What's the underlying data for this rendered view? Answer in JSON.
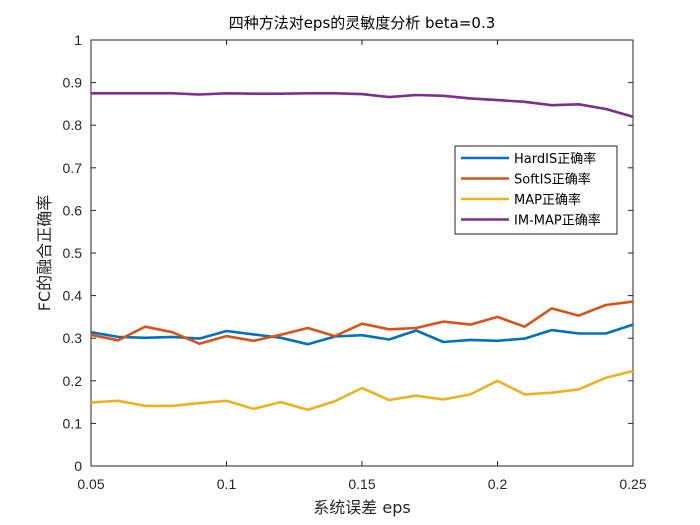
{
  "chart_data": {
    "type": "line",
    "title": "四种方法对eps的灵敏度分析 beta=0.3",
    "xlabel": "系统误差 eps",
    "ylabel": "FC的融合正确率",
    "xlim": [
      0.05,
      0.25
    ],
    "ylim": [
      0,
      1
    ],
    "xticks": [
      0.05,
      0.1,
      0.15,
      0.2,
      0.25
    ],
    "xtick_labels": [
      "0.05",
      "0.1",
      "0.15",
      "0.2",
      "0.25"
    ],
    "yticks": [
      0,
      0.1,
      0.2,
      0.3,
      0.4,
      0.5,
      0.6,
      0.7,
      0.8,
      0.9,
      1
    ],
    "ytick_labels": [
      "0",
      "0.1",
      "0.2",
      "0.3",
      "0.4",
      "0.5",
      "0.6",
      "0.7",
      "0.8",
      "0.9",
      "1"
    ],
    "grid": false,
    "legend_position": "right",
    "x": [
      0.05,
      0.06,
      0.07,
      0.08,
      0.09,
      0.1,
      0.11,
      0.12,
      0.13,
      0.14,
      0.15,
      0.16,
      0.17,
      0.18,
      0.19,
      0.2,
      0.21,
      0.22,
      0.23,
      0.24,
      0.25
    ],
    "series": [
      {
        "name": "HardIS正确率",
        "color": "#0072BD",
        "values": [
          0.314,
          0.303,
          0.301,
          0.303,
          0.299,
          0.317,
          0.309,
          0.301,
          0.286,
          0.304,
          0.307,
          0.297,
          0.318,
          0.291,
          0.296,
          0.294,
          0.299,
          0.319,
          0.311,
          0.311,
          0.332
        ]
      },
      {
        "name": "SoftIS正确率",
        "color": "#D95319",
        "values": [
          0.308,
          0.295,
          0.327,
          0.314,
          0.287,
          0.305,
          0.294,
          0.308,
          0.324,
          0.305,
          0.334,
          0.321,
          0.324,
          0.339,
          0.332,
          0.35,
          0.327,
          0.37,
          0.353,
          0.378,
          0.386
        ]
      },
      {
        "name": "MAP正确率",
        "color": "#EDB120",
        "values": [
          0.149,
          0.153,
          0.141,
          0.141,
          0.148,
          0.153,
          0.134,
          0.15,
          0.132,
          0.152,
          0.183,
          0.155,
          0.165,
          0.156,
          0.168,
          0.2,
          0.168,
          0.172,
          0.18,
          0.207,
          0.223
        ]
      },
      {
        "name": "IM-MAP正确率",
        "color": "#7E2F8E",
        "values": [
          0.875,
          0.875,
          0.875,
          0.875,
          0.872,
          0.875,
          0.874,
          0.874,
          0.875,
          0.875,
          0.873,
          0.866,
          0.871,
          0.869,
          0.863,
          0.859,
          0.855,
          0.847,
          0.849,
          0.838,
          0.82
        ]
      }
    ]
  }
}
